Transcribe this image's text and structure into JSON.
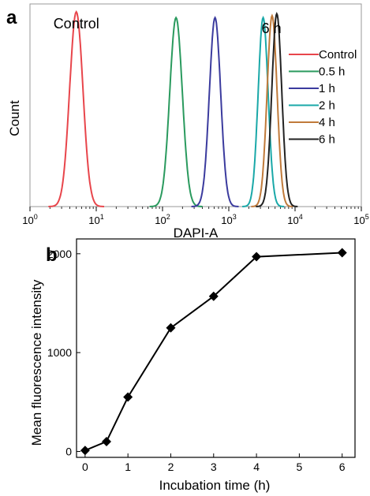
{
  "panel_a_label": "a",
  "panel_b_label": "b",
  "chart_data": [
    {
      "type": "line",
      "panel": "a",
      "xlabel": "DAPI-A",
      "ylabel": "Count",
      "xscale": "log",
      "xlim": [
        1,
        100000
      ],
      "xticks": [
        1,
        10,
        100,
        1000,
        10000,
        100000
      ],
      "xtick_labels": [
        {
          "base": "10",
          "exp": "0"
        },
        {
          "base": "10",
          "exp": "1"
        },
        {
          "base": "10",
          "exp": "2"
        },
        {
          "base": "10",
          "exp": "3"
        },
        {
          "base": "10",
          "exp": "4"
        },
        {
          "base": "10",
          "exp": "5"
        }
      ],
      "annotations": [
        {
          "text": "Control",
          "x": 5
        },
        {
          "text": "6 h",
          "x": 5500
        }
      ],
      "legend_position": "right",
      "series": [
        {
          "name": "Control",
          "color": "#e8454b",
          "peak_x": 5.0,
          "width": 0.1,
          "height": 1.0
        },
        {
          "name": "0.5 h",
          "color": "#2a9a5e",
          "peak_x": 160,
          "width": 0.095,
          "height": 0.97
        },
        {
          "name": "1 h",
          "color": "#3b3b9e",
          "peak_x": 620,
          "width": 0.085,
          "height": 0.97
        },
        {
          "name": "2 h",
          "color": "#1aa8a8",
          "peak_x": 3300,
          "width": 0.075,
          "height": 0.97
        },
        {
          "name": "4 h",
          "color": "#c07a3a",
          "peak_x": 4500,
          "width": 0.075,
          "height": 0.98
        },
        {
          "name": "6 h",
          "color": "#222222",
          "peak_x": 5300,
          "width": 0.075,
          "height": 0.99
        }
      ]
    },
    {
      "type": "line",
      "panel": "b",
      "xlabel": "Incubation time (h)",
      "ylabel": "Mean fluorescence intensity",
      "xlim": [
        -0.2,
        6.3
      ],
      "ylim": [
        -60,
        2150
      ],
      "xticks": [
        "0",
        "1",
        "2",
        "3",
        "4",
        "5",
        "6"
      ],
      "yticks": [
        "0",
        "1000",
        "2000"
      ],
      "marker": "diamond",
      "color": "#000000",
      "x": [
        0,
        0.5,
        1,
        2,
        3,
        4,
        6
      ],
      "y": [
        10,
        100,
        550,
        1250,
        1570,
        1970,
        2010
      ]
    }
  ]
}
